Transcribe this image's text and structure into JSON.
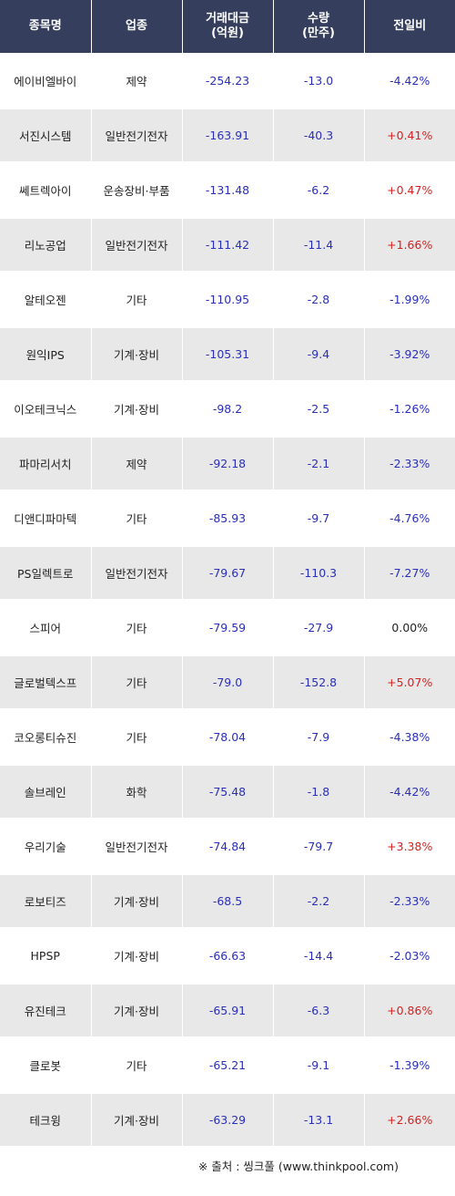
{
  "header": {
    "col1": "종목명",
    "col2": "업종",
    "col3_line1": "거래대금",
    "col3_line2": "(억원)",
    "col4_line1": "수량",
    "col4_line2": "(만주)",
    "col5": "전일비"
  },
  "rows": [
    {
      "name": "에이비엘바이",
      "sector": "제약",
      "amount": "-254.23",
      "qty": "-13.0",
      "change": "-4.42%",
      "dir": "neg"
    },
    {
      "name": "서진시스템",
      "sector": "일반전기전자",
      "amount": "-163.91",
      "qty": "-40.3",
      "change": "+0.41%",
      "dir": "pos"
    },
    {
      "name": "쎄트렉아이",
      "sector": "운송장비·부품",
      "amount": "-131.48",
      "qty": "-6.2",
      "change": "+0.47%",
      "dir": "pos"
    },
    {
      "name": "리노공업",
      "sector": "일반전기전자",
      "amount": "-111.42",
      "qty": "-11.4",
      "change": "+1.66%",
      "dir": "pos"
    },
    {
      "name": "알테오젠",
      "sector": "기타",
      "amount": "-110.95",
      "qty": "-2.8",
      "change": "-1.99%",
      "dir": "neg"
    },
    {
      "name": "원익IPS",
      "sector": "기계·장비",
      "amount": "-105.31",
      "qty": "-9.4",
      "change": "-3.92%",
      "dir": "neg"
    },
    {
      "name": "이오테크닉스",
      "sector": "기계·장비",
      "amount": "-98.2",
      "qty": "-2.5",
      "change": "-1.26%",
      "dir": "neg"
    },
    {
      "name": "파마리서치",
      "sector": "제약",
      "amount": "-92.18",
      "qty": "-2.1",
      "change": "-2.33%",
      "dir": "neg"
    },
    {
      "name": "디앤디파마텍",
      "sector": "기타",
      "amount": "-85.93",
      "qty": "-9.7",
      "change": "-4.76%",
      "dir": "neg"
    },
    {
      "name": "PS일렉트로",
      "sector": "일반전기전자",
      "amount": "-79.67",
      "qty": "-110.3",
      "change": "-7.27%",
      "dir": "neg"
    },
    {
      "name": "스피어",
      "sector": "기타",
      "amount": "-79.59",
      "qty": "-27.9",
      "change": "0.00%",
      "dir": "zero"
    },
    {
      "name": "글로벌텍스프",
      "sector": "기타",
      "amount": "-79.0",
      "qty": "-152.8",
      "change": "+5.07%",
      "dir": "pos"
    },
    {
      "name": "코오롱티슈진",
      "sector": "기타",
      "amount": "-78.04",
      "qty": "-7.9",
      "change": "-4.38%",
      "dir": "neg"
    },
    {
      "name": "솔브레인",
      "sector": "화학",
      "amount": "-75.48",
      "qty": "-1.8",
      "change": "-4.42%",
      "dir": "neg"
    },
    {
      "name": "우리기술",
      "sector": "일반전기전자",
      "amount": "-74.84",
      "qty": "-79.7",
      "change": "+3.38%",
      "dir": "pos"
    },
    {
      "name": "로보티즈",
      "sector": "기계·장비",
      "amount": "-68.5",
      "qty": "-2.2",
      "change": "-2.33%",
      "dir": "neg"
    },
    {
      "name": "HPSP",
      "sector": "기계·장비",
      "amount": "-66.63",
      "qty": "-14.4",
      "change": "-2.03%",
      "dir": "neg"
    },
    {
      "name": "유진테크",
      "sector": "기계·장비",
      "amount": "-65.91",
      "qty": "-6.3",
      "change": "+0.86%",
      "dir": "pos"
    },
    {
      "name": "클로봇",
      "sector": "기타",
      "amount": "-65.21",
      "qty": "-9.1",
      "change": "-1.39%",
      "dir": "neg"
    },
    {
      "name": "테크윙",
      "sector": "기계·장비",
      "amount": "-63.29",
      "qty": "-13.1",
      "change": "+2.66%",
      "dir": "pos"
    }
  ],
  "source": "※ 출처 : 씽크풀 (www.thinkpool.com)",
  "colors": {
    "header_bg": "#353e5c",
    "stripe": "#e8e8e8",
    "negative": "#2a2fb5",
    "positive": "#d91e1e"
  }
}
